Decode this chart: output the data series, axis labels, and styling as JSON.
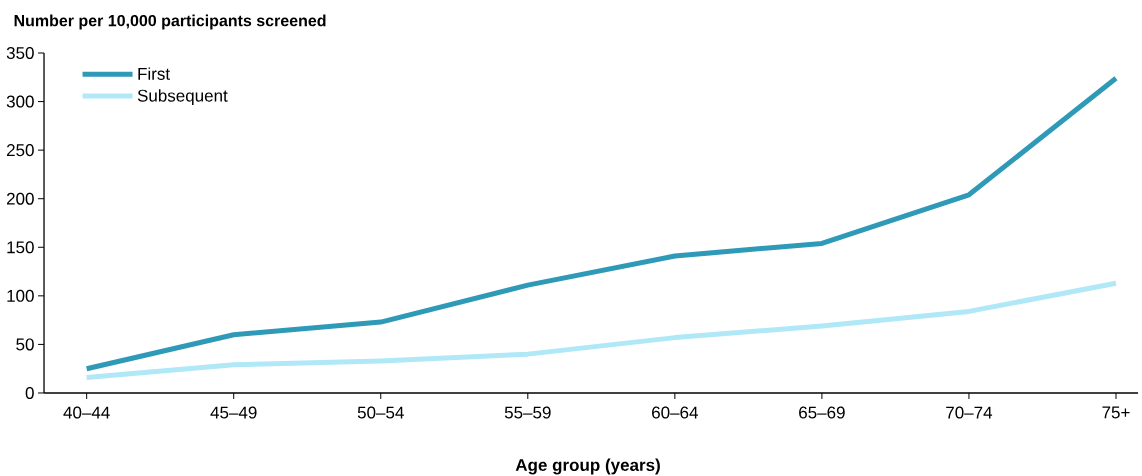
{
  "chart_data": {
    "type": "line",
    "ylabel": "Number per 10,000 participants screened",
    "xlabel": "Age group (years)",
    "categories": [
      "40–44",
      "45–49",
      "50–54",
      "55–59",
      "60–64",
      "65–69",
      "70–74",
      "75+"
    ],
    "series": [
      {
        "name": "First",
        "color": "#2e9ab8",
        "values": [
          25,
          60,
          73,
          111,
          141,
          154,
          204,
          324
        ]
      },
      {
        "name": "Subsequent",
        "color": "#b0e8f8",
        "values": [
          16,
          29,
          33,
          40,
          57,
          69,
          84,
          113
        ]
      }
    ],
    "ylim": [
      0,
      350
    ],
    "yticks": [
      0,
      50,
      100,
      150,
      200,
      250,
      300,
      350
    ],
    "grid": false,
    "legend": "top left",
    "marker": "none",
    "line_style": "solid"
  }
}
